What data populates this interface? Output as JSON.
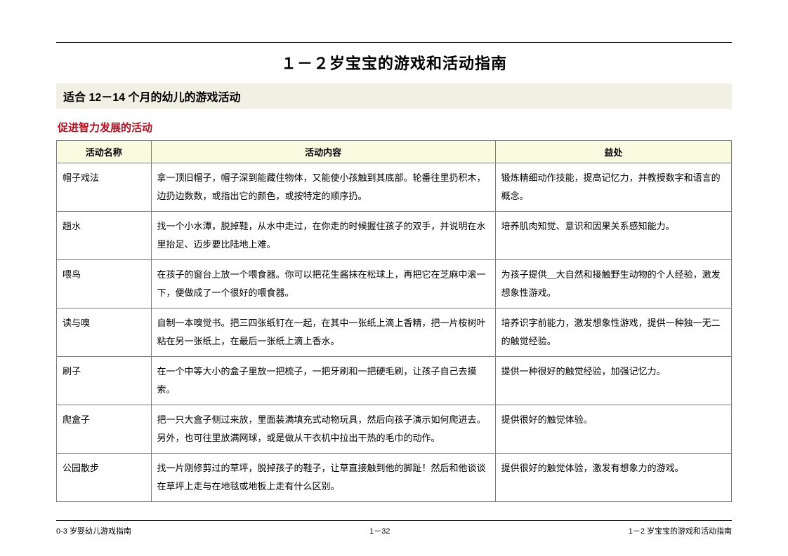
{
  "title": "１－２岁宝宝的游戏和活动指南",
  "section_bar": "适合 12－14 个月的幼儿的游戏活动",
  "sub_heading": "促进智力发展的活动",
  "columns": [
    "活动名称",
    "活动内容",
    "益处"
  ],
  "rows": [
    {
      "name": "帽子戏法",
      "content": "拿一顶旧帽子，帽子深到能藏住物体，又能使小孩触到其底部。轮番往里扔积木，边扔边数数，或指出它的颜色，或按特定的顺序扔。",
      "benefit": "锻炼精细动作技能，提高记忆力，并教授数字和语言的概念。"
    },
    {
      "name": "趟水",
      "content": "找一个小水潭，脱掉鞋，从水中走过，在你走的时候握住孩子的双手，并说明在水里抬足、迈步要比陆地上难。",
      "benefit": "培养肌肉知觉、意识和因果关系感知能力。"
    },
    {
      "name": "喂鸟",
      "content": "在孩子的窗台上放一个喂食器。你可以把花生酱抹在松球上，再把它在芝麻中滚一下，便做成了一个很好的喂食器。",
      "benefit": "为孩子提供＿大自然和接触野生动物的个人经验，激发想象性游戏。"
    },
    {
      "name": "读与嗅",
      "content": "自制一本嗅觉书。把三四张纸钉在一起，在其中一张纸上滴上香精，把一片桉树叶粘在另一张纸上，在最后一张纸上滴上香水。",
      "benefit": "培养识字前能力，激发想象性游戏，提供一种独一无二的触觉经验。"
    },
    {
      "name": "刷子",
      "content": "在一个中等大小的盒子里放一把梳子，一把牙刷和一把硬毛刷，让孩子自己去摸索。",
      "benefit": "提供一种很好的触觉经验，加强记忆力。"
    },
    {
      "name": "爬盒子",
      "content": "把一只大盒子侧过来放，里面装满填充式动物玩具，然后向孩子演示如何爬进去。另外，也可往里放满网球，或是做从干衣机中拉出干热的毛巾的动作。",
      "benefit": "提供很好的触觉体验。"
    },
    {
      "name": "公园散步",
      "content": "找一片刚修剪过的草坪，脱掉孩子的鞋子，让草直接触到他的脚趾！然后和他谈谈在草坪上走与在地毯或地板上走有什么区别。",
      "benefit": "提供很好的触觉体验，激发有想象力的游戏。"
    }
  ],
  "footer": {
    "left": "0-3 岁婴幼儿游戏指南",
    "center": "1－32",
    "right": "1－2 岁宝宝的游戏和活动指南"
  },
  "colors": {
    "header_bg": "#fafae0",
    "section_bg": "#f0f0e4",
    "sub_heading": "#b01020",
    "border": "#7a7a7a"
  }
}
